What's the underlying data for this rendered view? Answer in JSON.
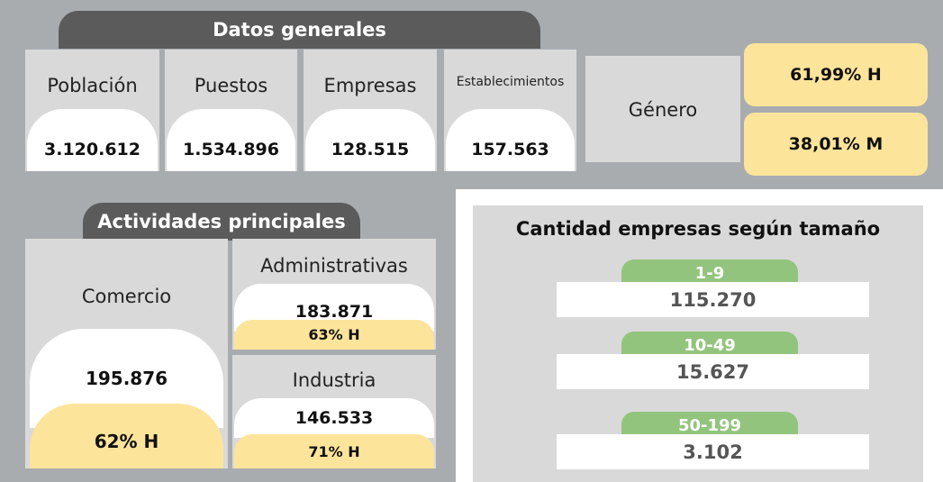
{
  "general": {
    "title": "Datos generales",
    "items": [
      {
        "label": "Población",
        "value": "3.120.612"
      },
      {
        "label": "Puestos",
        "value": "1.534.896"
      },
      {
        "label": "Empresas",
        "value": "128.515"
      },
      {
        "label": "Establecimientos",
        "value": "157.563"
      }
    ]
  },
  "gender": {
    "label": "Género",
    "values": [
      "61,99% H",
      "38,01% M"
    ]
  },
  "activities": {
    "title": "Actividades principales",
    "items": [
      {
        "label": "Comercio",
        "value": "195.876",
        "share": "62% H"
      },
      {
        "label": "Administrativas",
        "value": "183.871",
        "share": "63% H"
      },
      {
        "label": "Industria",
        "value": "146.533",
        "share": "71% H"
      }
    ]
  },
  "sizes": {
    "title": "Cantidad empresas según tamaño",
    "items": [
      {
        "range": "1-9",
        "value": "115.270"
      },
      {
        "range": "10-49",
        "value": "15.627"
      },
      {
        "range": "50-199",
        "value": "3.102"
      }
    ]
  }
}
